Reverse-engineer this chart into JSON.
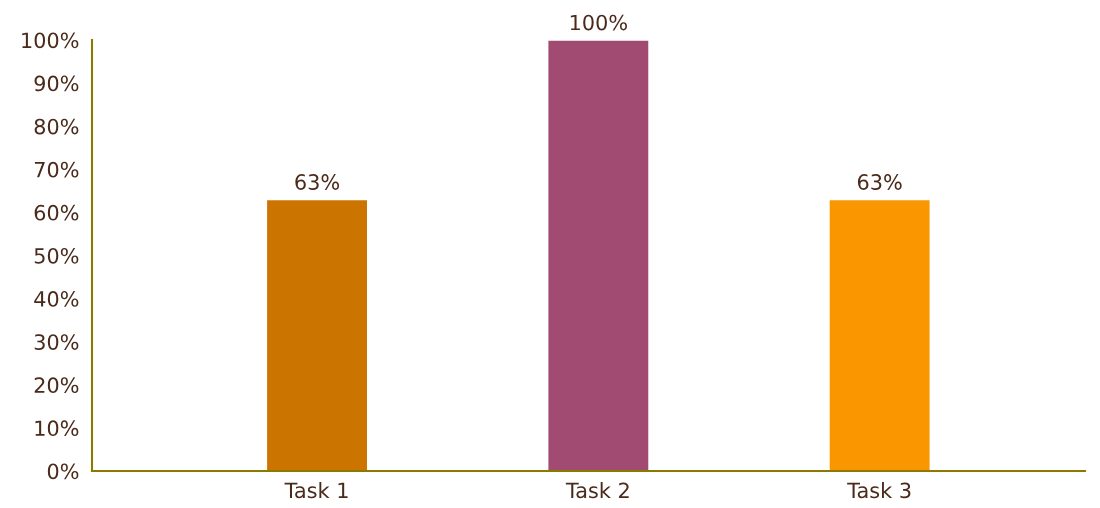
{
  "chart_data": {
    "type": "bar",
    "categories": [
      "Task 1",
      "Task 2",
      "Task 3"
    ],
    "values": [
      63,
      100,
      63
    ],
    "colors": [
      "#cc7400",
      "#a14a72",
      "#fa9600"
    ],
    "value_labels": [
      "63%",
      "100%",
      "63%"
    ],
    "ylim": [
      0,
      100
    ],
    "yticks": [
      {
        "value": 0,
        "label": "0%"
      },
      {
        "value": 10,
        "label": "10%"
      },
      {
        "value": 20,
        "label": "20%"
      },
      {
        "value": 30,
        "label": "30%"
      },
      {
        "value": 40,
        "label": "40%"
      },
      {
        "value": 50,
        "label": "50%"
      },
      {
        "value": 60,
        "label": "60%"
      },
      {
        "value": 70,
        "label": "70%"
      },
      {
        "value": 80,
        "label": "80%"
      },
      {
        "value": 90,
        "label": "90%"
      },
      {
        "value": 100,
        "label": "100%"
      }
    ],
    "grid": false,
    "legend": false
  }
}
